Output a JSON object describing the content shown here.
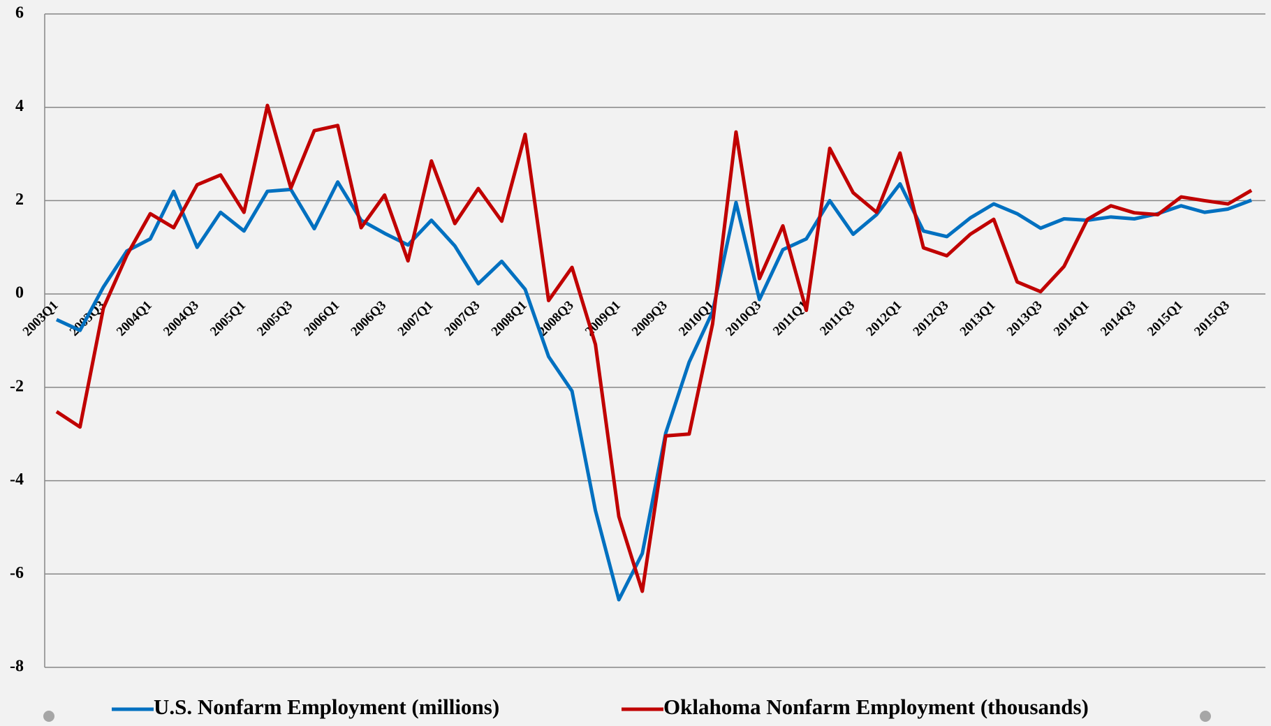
{
  "chart_data": {
    "type": "line",
    "categories": [
      "2003Q1",
      null,
      "2003Q3",
      null,
      "2004Q1",
      null,
      "2004Q3",
      null,
      "2005Q1",
      null,
      "2005Q3",
      null,
      "2006Q1",
      null,
      "2006Q3",
      null,
      "2007Q1",
      null,
      "2007Q3",
      null,
      "2008Q1",
      null,
      "2008Q3",
      null,
      "2009Q1",
      null,
      "2009Q3",
      null,
      "2010Q1",
      null,
      "2010Q3",
      null,
      "2011Q1",
      null,
      "2011Q3",
      null,
      "2012Q1",
      null,
      "2012Q3",
      null,
      "2013Q1",
      null,
      "2013Q3",
      null,
      "2014Q1",
      null,
      "2014Q3",
      null,
      "2015Q1",
      null,
      "2015Q3",
      null
    ],
    "series": [
      {
        "name": "U.S. Nonfarm Employment (millions)",
        "color": "#0070c0",
        "values": [
          -0.55,
          -0.78,
          0.15,
          0.92,
          1.18,
          2.2,
          1.0,
          1.75,
          1.35,
          2.2,
          2.24,
          1.4,
          2.4,
          1.58,
          1.3,
          1.05,
          1.58,
          1.03,
          0.22,
          0.7,
          0.1,
          -1.34,
          -2.08,
          -4.64,
          -6.55,
          -5.56,
          -2.98,
          -1.46,
          -0.38,
          1.96,
          -0.12,
          0.95,
          1.18,
          2.0,
          1.28,
          1.7,
          2.36,
          1.35,
          1.23,
          1.63,
          1.93,
          1.72,
          1.41,
          1.61,
          1.58,
          1.65,
          1.61,
          1.72,
          1.89,
          1.75,
          1.82,
          2.01
        ]
      },
      {
        "name": "Oklahoma Nonfarm Employment (thousands)",
        "color": "#c00000",
        "values": [
          -2.52,
          -2.85,
          -0.3,
          0.83,
          1.72,
          1.42,
          2.34,
          2.55,
          1.75,
          4.04,
          2.27,
          3.5,
          3.61,
          1.42,
          2.12,
          0.71,
          2.85,
          1.51,
          2.26,
          1.56,
          3.42,
          -0.14,
          0.57,
          -1.08,
          -4.77,
          -6.37,
          -3.04,
          -3.0,
          -0.64,
          3.47,
          0.33,
          1.46,
          -0.35,
          3.12,
          2.17,
          1.75,
          3.02,
          0.99,
          0.82,
          1.28,
          1.6,
          0.26,
          0.05,
          0.59,
          1.6,
          1.89,
          1.74,
          1.7,
          2.08,
          2.0,
          1.93,
          2.22
        ]
      }
    ],
    "ylim": [
      -8,
      6
    ],
    "yticks": [
      -8,
      -6,
      -4,
      -2,
      0,
      2,
      4,
      6
    ],
    "grid": true,
    "legend": "bottom"
  }
}
